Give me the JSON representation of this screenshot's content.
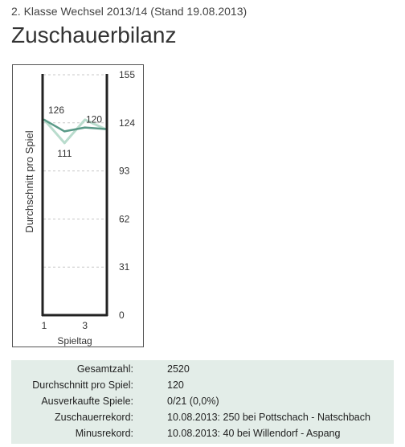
{
  "header": {
    "subtitle": "2. Klasse Wechsel 2013/14 (Stand 19.08.2013)",
    "title": "Zuschauerbilanz"
  },
  "chart_data": {
    "type": "line",
    "title": "",
    "xlabel": "Spieltag",
    "ylabel": "Durchschnitt pro Spiel",
    "x_ticks": [
      "1",
      "3"
    ],
    "y_ticks": [
      0,
      31,
      62,
      93,
      124,
      155
    ],
    "ylim": [
      0,
      155
    ],
    "xlim": [
      1,
      4
    ],
    "grid": true,
    "colors": {
      "series_light": "#b9dccd",
      "series_dark": "#5a9a88",
      "axis": "#222222",
      "grid": "#c8c8c8"
    },
    "series": [
      {
        "x": [
          1,
          2,
          3,
          4
        ],
        "values": [
          126,
          111,
          126,
          120
        ],
        "data_labels": [
          "126",
          "111",
          "",
          "120"
        ]
      },
      {
        "x": [
          1,
          2,
          3,
          4
        ],
        "values": [
          126,
          118.5,
          121,
          120
        ]
      }
    ]
  },
  "stats": [
    {
      "label": "Gesamtzahl:",
      "value": "2520"
    },
    {
      "label": "Durchschnitt pro Spiel:",
      "value": "120"
    },
    {
      "label": "Ausverkaufte Spiele:",
      "value": "0/21 (0,0%)"
    },
    {
      "label": "Zuschauerrekord:",
      "value": "10.08.2013: 250 bei Pottschach - Natschbach"
    },
    {
      "label": "Minusrekord:",
      "value": "10.08.2013: 40 bei Willendorf - Aspang"
    }
  ]
}
